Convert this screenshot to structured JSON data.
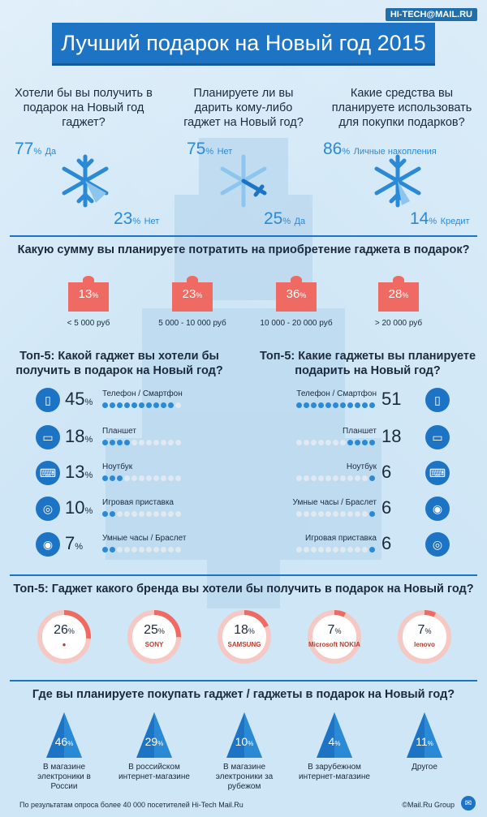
{
  "brand": "HI-TECH@MAIL.RU",
  "title": "Лучший подарок на Новый год 2015",
  "q1": {
    "question": "Хотели бы вы получить в подарок на Новый год гаджет?",
    "a_pct": "77",
    "a_label": "Да",
    "b_pct": "23",
    "b_label": "Нет"
  },
  "q2": {
    "question": "Планируете ли вы дарить кому-либо гаджет на Новый год?",
    "a_pct": "75",
    "a_label": "Нет",
    "b_pct": "25",
    "b_label": "Да"
  },
  "q3": {
    "question": "Какие средства вы планируете использовать для покупки подарков?",
    "a_pct": "86",
    "a_label": "Личные накопления",
    "b_pct": "14",
    "b_label": "Кредит"
  },
  "pct_sign": "%",
  "budget": {
    "question": "Какую сумму вы планируете потратить на приобретение гаджета в подарок?",
    "items": [
      {
        "value": "13",
        "label": "< 5 000 руб"
      },
      {
        "value": "23",
        "label": "5 000 - 10 000 руб"
      },
      {
        "value": "36",
        "label": "10 000 - 20 000 руб"
      },
      {
        "value": "28",
        "label": "> 20 000 руб"
      }
    ]
  },
  "want": {
    "title": "Топ-5: Какой гаджет вы хотели бы получить в подарок на Новый год?",
    "items": [
      {
        "value": "45",
        "label": "Телефон / Смартфон",
        "icon": "smartphone-icon"
      },
      {
        "value": "18",
        "label": "Планшет",
        "icon": "tablet-icon"
      },
      {
        "value": "13",
        "label": "Ноутбук",
        "icon": "laptop-icon"
      },
      {
        "value": "10",
        "label": "Игровая приставка",
        "icon": "gamepad-icon"
      },
      {
        "value": "7",
        "label": "Умные часы / Браслет",
        "icon": "watch-icon"
      }
    ]
  },
  "give": {
    "title": "Топ-5: Какие гаджеты вы планируете подарить на Новый год?",
    "items": [
      {
        "value": "51",
        "label": "Телефон / Смартфон",
        "icon": "smartphone-icon"
      },
      {
        "value": "18",
        "label": "Планшет",
        "icon": "tablet-icon"
      },
      {
        "value": "6",
        "label": "Ноутбук",
        "icon": "laptop-icon"
      },
      {
        "value": "6",
        "label": "Умные часы / Браслет",
        "icon": "watch-icon"
      },
      {
        "value": "6",
        "label": "Игровая приставка",
        "icon": "gamepad-icon"
      }
    ]
  },
  "brands": {
    "title": "Топ-5: Гаджет какого бренда вы хотели бы получить в подарок на Новый год?",
    "items": [
      {
        "value": "26",
        "logo": ""
      },
      {
        "value": "25",
        "logo": "SONY"
      },
      {
        "value": "18",
        "logo": "SAMSUNG"
      },
      {
        "value": "7",
        "logo": "Microsoft NOKIA"
      },
      {
        "value": "7",
        "logo": "lenovo"
      }
    ]
  },
  "shops": {
    "title": "Где вы планируете покупать гаджет / гаджеты в подарок на Новый год?",
    "items": [
      {
        "value": "46",
        "label": "В магазине электроники в России"
      },
      {
        "value": "29",
        "label": "В российском интернет-магазине"
      },
      {
        "value": "10",
        "label": "В магазине электроники за рубежом"
      },
      {
        "value": "4",
        "label": "В зарубежном интернет-магазине"
      },
      {
        "value": "11",
        "label": "Другое"
      }
    ]
  },
  "footer_left": "По результатам опроса более 40 000 посетителей Hi-Tech Mail.Ru",
  "footer_right": "©Mail.Ru Group",
  "colors": {
    "blue": "#1e74c4",
    "accent": "#2b8ad6",
    "red": "#ef6a62",
    "bg": "#cfe6f6"
  }
}
